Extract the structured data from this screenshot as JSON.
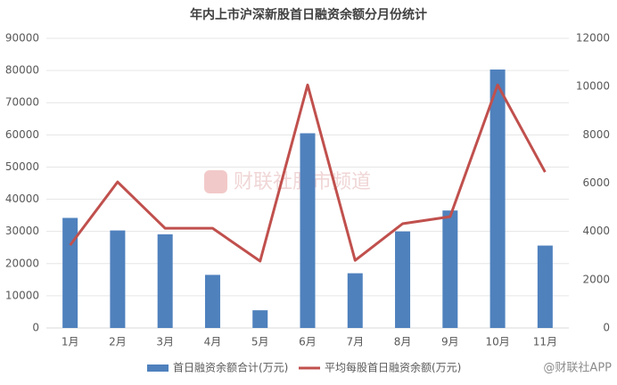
{
  "chart_data": {
    "type": "combo",
    "title": "年内上市沪深新股首日融资余额分月份统计",
    "watermark": "财联社股市频道",
    "source": "@财联社APP",
    "categories": [
      "1月",
      "2月",
      "3月",
      "4月",
      "5月",
      "6月",
      "7月",
      "8月",
      "9月",
      "10月",
      "11月"
    ],
    "series": [
      {
        "name": "首日融资余额合计(万元)",
        "type": "bar",
        "color": "#4f81bd",
        "values": [
          34200,
          30300,
          29100,
          16500,
          5500,
          60500,
          17000,
          30000,
          36500,
          80300,
          25600
        ]
      },
      {
        "name": "平均每股首日融资余额(万元)",
        "type": "line",
        "color": "#c0504d",
        "axis": "y2",
        "values": [
          3430,
          6050,
          4130,
          4130,
          2770,
          10070,
          2800,
          4320,
          4610,
          10070,
          6460
        ]
      }
    ],
    "ylim": [
      0,
      90000
    ],
    "yticks": [
      0,
      10000,
      20000,
      30000,
      40000,
      50000,
      60000,
      70000,
      80000,
      90000
    ],
    "y2lim": [
      0,
      12000
    ],
    "y2ticks": [
      0,
      2000,
      4000,
      6000,
      8000,
      10000,
      12000
    ],
    "grid": true,
    "legend": "bottom"
  }
}
